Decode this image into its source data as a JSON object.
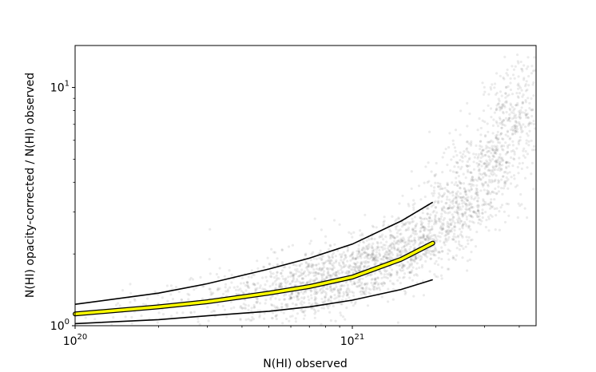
{
  "chart_data": {
    "type": "scatter",
    "title": "",
    "xlabel": "N(HI) observed",
    "ylabel": "N(HI) opacity-corrected / N(HI) observed",
    "x_scale": "log",
    "y_scale": "log",
    "xlim": [
      1e+20,
      4.6e+21
    ],
    "ylim": [
      1.0,
      15.0
    ],
    "x_ticks": [
      {
        "value": 1e+20,
        "base": "10",
        "exp": "20"
      },
      {
        "value": 1e+21,
        "base": "10",
        "exp": "21"
      }
    ],
    "y_ticks": [
      {
        "value": 1,
        "base": "10",
        "exp": "0"
      },
      {
        "value": 10,
        "base": "10",
        "exp": "1"
      }
    ],
    "grid": false,
    "legend": "none",
    "colors": {
      "points": "#000000",
      "fit_line": "#ffff00",
      "envelope": "#000000"
    },
    "series": [
      {
        "role": "fit",
        "style": "yellow line with black outline",
        "x": [
          1e+20,
          2e+20,
          3e+20,
          5e+20,
          7e+20,
          1e+21,
          1.5e+21,
          1.95e+21
        ],
        "y": [
          1.12,
          1.2,
          1.26,
          1.37,
          1.46,
          1.6,
          1.9,
          2.22
        ]
      },
      {
        "role": "upper-envelope",
        "style": "black line",
        "x": [
          1e+20,
          2e+20,
          3e+20,
          5e+20,
          7e+20,
          1e+21,
          1.5e+21,
          1.95e+21
        ],
        "y": [
          1.23,
          1.37,
          1.5,
          1.73,
          1.92,
          2.2,
          2.75,
          3.3
        ]
      },
      {
        "role": "lower-envelope",
        "style": "black line",
        "x": [
          1e+20,
          2e+20,
          3e+20,
          5e+20,
          7e+20,
          1e+21,
          1.5e+21,
          1.95e+21
        ],
        "y": [
          1.02,
          1.06,
          1.1,
          1.15,
          1.2,
          1.28,
          1.42,
          1.56
        ]
      }
    ],
    "scatter_cloud": [
      {
        "x": 1.5e+20,
        "y": 1.15,
        "n": 30
      },
      {
        "x": 2.5e+20,
        "y": 1.22,
        "n": 60
      },
      {
        "x": 4e+20,
        "y": 1.33,
        "n": 140
      },
      {
        "x": 6e+20,
        "y": 1.42,
        "n": 260
      },
      {
        "x": 8e+20,
        "y": 1.55,
        "n": 340
      },
      {
        "x": 1.1e+21,
        "y": 1.75,
        "n": 360
      },
      {
        "x": 1.5e+21,
        "y": 2.0,
        "n": 340
      },
      {
        "x": 2e+21,
        "y": 2.5,
        "n": 320
      },
      {
        "x": 2.6e+21,
        "y": 3.4,
        "n": 320
      },
      {
        "x": 3.2e+21,
        "y": 5.0,
        "n": 300
      },
      {
        "x": 3.8e+21,
        "y": 7.5,
        "n": 220
      },
      {
        "x": 4.3e+21,
        "y": 10.5,
        "n": 90
      }
    ]
  }
}
